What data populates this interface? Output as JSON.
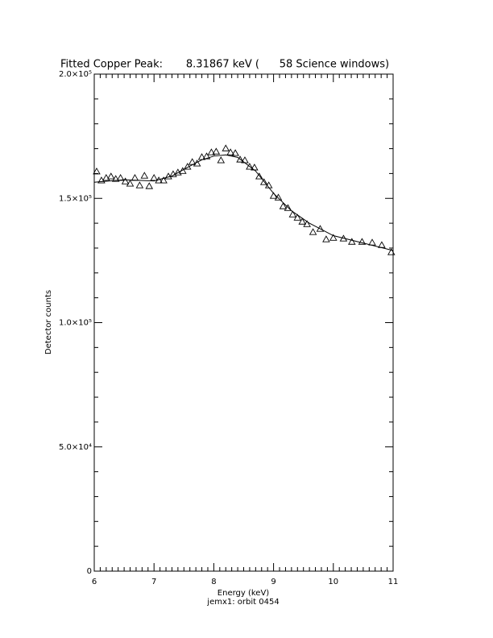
{
  "chart_data": {
    "type": "scatter",
    "title": "Fitted Copper Peak:       8.31867 keV (      58 Science windows)",
    "x_label": "Energy (keV)",
    "y_label": "Detector counts",
    "footer": "jemx1: orbit 0454",
    "xlim": [
      6,
      11
    ],
    "xticks": [
      6,
      7,
      8,
      9,
      10,
      11
    ],
    "ylim": [
      0,
      200000
    ],
    "yticks": [
      0,
      {
        "value": 50000,
        "label": "5.0×10⁴"
      },
      {
        "value": 100000,
        "label": "1.0×10⁵"
      },
      {
        "value": 150000,
        "label": "1.5×10⁵"
      },
      {
        "value": 200000,
        "label": "2.0×10⁵"
      }
    ],
    "minor_divisions": {
      "x": 10,
      "y": 5
    },
    "series": [
      {
        "mode": "markers",
        "marker": "triangle",
        "color": "#000000",
        "x": [
          6.04,
          6.12,
          6.2,
          6.28,
          6.36,
          6.44,
          6.52,
          6.6,
          6.68,
          6.76,
          6.84,
          6.92,
          7.0,
          7.08,
          7.16,
          7.24,
          7.32,
          7.4,
          7.48,
          7.56,
          7.64,
          7.72,
          7.8,
          7.88,
          7.96,
          8.04,
          8.12,
          8.2,
          8.28,
          8.36,
          8.44,
          8.52,
          8.6,
          8.68,
          8.76,
          8.84,
          8.92,
          9.0,
          9.08,
          9.16,
          9.24,
          9.32,
          9.4,
          9.48,
          9.56,
          9.66,
          9.78,
          9.88,
          10.0,
          10.17,
          10.31,
          10.48,
          10.65,
          10.81,
          10.97
        ],
        "values": [
          160800,
          157200,
          158200,
          158800,
          157800,
          158200,
          156800,
          155900,
          158200,
          155200,
          159100,
          154900,
          158200,
          157200,
          157200,
          158800,
          159700,
          160400,
          161000,
          162700,
          164600,
          164000,
          166600,
          166900,
          168500,
          168800,
          165300,
          170100,
          168500,
          168200,
          165600,
          165300,
          162700,
          162400,
          158800,
          156500,
          155200,
          151000,
          150300,
          146800,
          146100,
          143500,
          142200,
          140600,
          139600,
          136400,
          137700,
          133500,
          134100,
          133800,
          132500,
          132500,
          132200,
          131200,
          128300
        ]
      },
      {
        "mode": "line",
        "color": "#000000",
        "x": [
          6.0,
          6.5,
          7.0,
          7.3,
          7.6,
          7.8,
          8.0,
          8.2,
          8.4,
          8.7,
          9.0,
          9.3,
          9.6,
          10.0,
          10.5,
          11.0
        ],
        "values": [
          156500,
          157500,
          157000,
          159000,
          163000,
          165500,
          167000,
          167500,
          166500,
          161000,
          152000,
          145000,
          140000,
          135000,
          132000,
          129000
        ]
      }
    ]
  }
}
